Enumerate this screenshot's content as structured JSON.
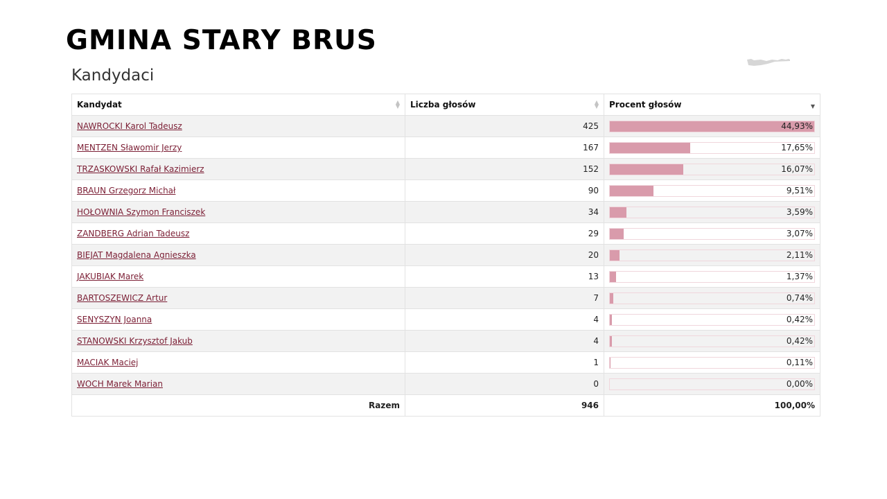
{
  "page": {
    "title": "GMINA STARY BRUS",
    "section_title": "Kandydaci"
  },
  "table": {
    "headers": {
      "candidate": "Kandydat",
      "votes": "Liczba głosów",
      "percent": "Procent głosów"
    },
    "sort": {
      "column": "percent",
      "direction": "descending"
    },
    "rows": [
      {
        "name": "NAWROCKI Karol Tadeusz",
        "votes": "425",
        "percent": "44,93%",
        "fraction": 1.0
      },
      {
        "name": "MENTZEN Sławomir Jerzy",
        "votes": "167",
        "percent": "17,65%",
        "fraction": 0.393
      },
      {
        "name": "TRZASKOWSKI Rafał Kazimierz",
        "votes": "152",
        "percent": "16,07%",
        "fraction": 0.358
      },
      {
        "name": "BRAUN Grzegorz Michał",
        "votes": "90",
        "percent": "9,51%",
        "fraction": 0.212
      },
      {
        "name": "HOŁOWNIA Szymon Franciszek",
        "votes": "34",
        "percent": "3,59%",
        "fraction": 0.08
      },
      {
        "name": "ZANDBERG Adrian Tadeusz",
        "votes": "29",
        "percent": "3,07%",
        "fraction": 0.068
      },
      {
        "name": "BIEJAT Magdalena Agnieszka",
        "votes": "20",
        "percent": "2,11%",
        "fraction": 0.047
      },
      {
        "name": "JAKUBIAK Marek",
        "votes": "13",
        "percent": "1,37%",
        "fraction": 0.031
      },
      {
        "name": "BARTOSZEWICZ Artur",
        "votes": "7",
        "percent": "0,74%",
        "fraction": 0.016
      },
      {
        "name": "SENYSZYN Joanna",
        "votes": "4",
        "percent": "0,42%",
        "fraction": 0.009
      },
      {
        "name": "STANOWSKI Krzysztof Jakub",
        "votes": "4",
        "percent": "0,42%",
        "fraction": 0.009
      },
      {
        "name": "MACIAK Maciej",
        "votes": "1",
        "percent": "0,11%",
        "fraction": 0.002
      },
      {
        "name": "WOCH Marek Marian",
        "votes": "0",
        "percent": "0,00%",
        "fraction": 0.0
      }
    ],
    "footer": {
      "label": "Razem",
      "votes": "946",
      "percent": "100,00%"
    }
  },
  "colors": {
    "bar": "#d99bab",
    "link": "#7b1e34",
    "row_alt": "#f2f2f2"
  }
}
